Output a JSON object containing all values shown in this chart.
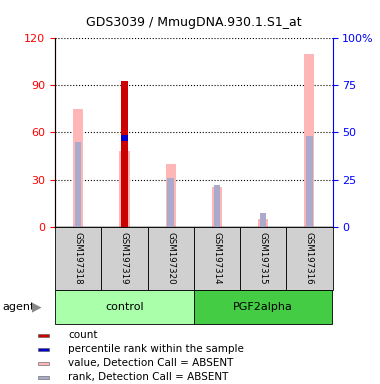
{
  "title": "GDS3039 / MmugDNA.930.1.S1_at",
  "samples": [
    "GSM197318",
    "GSM197319",
    "GSM197320",
    "GSM197314",
    "GSM197315",
    "GSM197316"
  ],
  "count_values": [
    0,
    93,
    0,
    0,
    0,
    0
  ],
  "pink_values": [
    75,
    48,
    40,
    25,
    5,
    110
  ],
  "blue_rank_values": [
    45,
    47,
    26,
    22,
    7,
    48
  ],
  "has_dark_blue": [
    false,
    true,
    false,
    false,
    false,
    false
  ],
  "ylim_left": [
    0,
    120
  ],
  "ylim_right": [
    0,
    100
  ],
  "right_ticks": [
    0,
    25,
    50,
    75,
    100
  ],
  "right_labels": [
    "0",
    "25",
    "50",
    "75",
    "100%"
  ],
  "left_ticks": [
    0,
    30,
    60,
    90,
    120
  ],
  "color_red": "#CC0000",
  "color_pink": "#FFB6B6",
  "color_blue_dark": "#0000CC",
  "color_blue_light": "#AAAACC",
  "color_gray_box": "#D0D0D0",
  "color_ctrl_green": "#AAFFAA",
  "color_pgf_green": "#44CC44",
  "background_color": "#ffffff",
  "legend_items": [
    {
      "color": "#CC0000",
      "label": "count"
    },
    {
      "color": "#0000CC",
      "label": "percentile rank within the sample"
    },
    {
      "color": "#FFB6B6",
      "label": "value, Detection Call = ABSENT"
    },
    {
      "color": "#AAAACC",
      "label": "rank, Detection Call = ABSENT"
    }
  ]
}
